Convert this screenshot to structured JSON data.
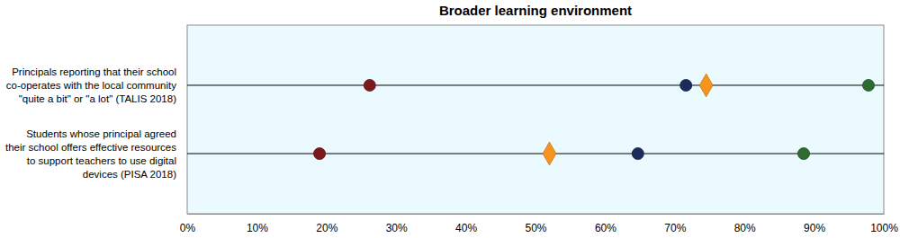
{
  "chart_data": {
    "type": "dot",
    "title": "Broader learning environment",
    "orientation": "horizontal",
    "categories": [
      "Principals reporting that their school co-operates with the local community \"quite a bit\" or \"a lot\" (TALIS 2018)",
      "Students whose principal agreed their school offers effective resources to support teachers to use digital devices (PISA 2018)"
    ],
    "series": [
      {
        "color": "#7b1a1e",
        "marker": "circle",
        "values": [
          26.2,
          19
        ]
      },
      {
        "color": "#1c2c5a",
        "marker": "circle",
        "values": [
          71.6,
          64.7
        ]
      },
      {
        "color": "#f7941d",
        "marker": "diamond",
        "values": [
          74.5,
          52
        ]
      },
      {
        "color": "#2e6b30",
        "marker": "circle",
        "values": [
          97.8,
          88.5
        ]
      }
    ],
    "xlim": [
      0,
      100
    ],
    "xticks": [
      {
        "value": 0,
        "label": "0%"
      },
      {
        "value": 10,
        "label": "10%"
      },
      {
        "value": 20,
        "label": "20%"
      },
      {
        "value": 30,
        "label": "30%"
      },
      {
        "value": 40,
        "label": "40%"
      },
      {
        "value": 50,
        "label": "50%"
      },
      {
        "value": 60,
        "label": "60%"
      },
      {
        "value": 70,
        "label": "70%"
      },
      {
        "value": 80,
        "label": "80%"
      },
      {
        "value": 90,
        "label": "90%"
      },
      {
        "value": 100,
        "label": "100%"
      }
    ],
    "grid": false
  }
}
